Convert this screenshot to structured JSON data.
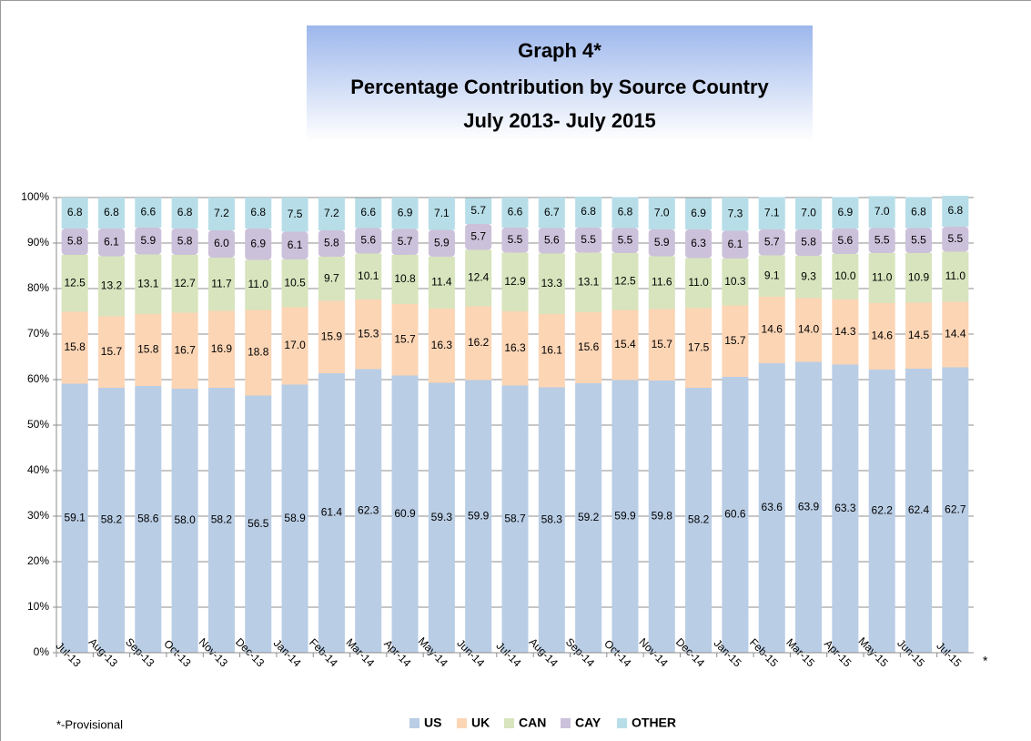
{
  "chart_data": {
    "type": "stacked_bar",
    "title": [
      "Graph 4*",
      "Percentage Contribution by Source Country",
      "July 2013- July 2015"
    ],
    "footnote": "*-Provisional",
    "axis_note": "*",
    "categories": [
      "Jul-13",
      "Aug-13",
      "Sep-13",
      "Oct-13",
      "Nov-13",
      "Dec-13",
      "Jan-14",
      "Feb-14",
      "Mar-14",
      "Apr-14",
      "May-14",
      "Jun-14",
      "Jul-14",
      "Aug-14",
      "Sep-14",
      "Oct-14",
      "Nov-14",
      "Dec-14",
      "Jan-15",
      "Feb-15",
      "Mar-15",
      "Apr-15",
      "May-15",
      "Jun-15",
      "Jul-15"
    ],
    "series": [
      {
        "name": "US",
        "color": "#b9cde5",
        "values": [
          59.1,
          58.2,
          58.6,
          58.0,
          58.2,
          56.5,
          58.9,
          61.4,
          62.3,
          60.9,
          59.3,
          59.9,
          58.7,
          58.3,
          59.2,
          59.9,
          59.8,
          58.2,
          60.6,
          63.6,
          63.9,
          63.3,
          62.2,
          62.4,
          62.7
        ],
        "value_labels": [
          "59.1",
          "58.2",
          "58.6",
          "58.0",
          "58.2",
          "56.5",
          "58.9",
          "61.4",
          "62.3",
          "60.9",
          "59.3",
          "59.9",
          "58.7",
          "58.3",
          "59.2",
          "59.9",
          "59.8",
          "58.2",
          "60.6",
          "63.6",
          "63.9",
          "63.3",
          "62.2",
          "62.4",
          "62.7"
        ]
      },
      {
        "name": "UK",
        "color": "#fcd5b5",
        "values": [
          15.8,
          15.7,
          15.8,
          16.7,
          16.9,
          18.8,
          17.0,
          15.9,
          15.3,
          15.7,
          16.3,
          16.2,
          16.3,
          16.1,
          15.6,
          15.4,
          15.7,
          17.5,
          15.7,
          14.6,
          14.0,
          14.3,
          14.6,
          14.5,
          14.4
        ],
        "value_labels": [
          "15.8",
          "15.7",
          "15.8",
          "16.7",
          "16.9",
          "18.8",
          "17.0",
          "15.9",
          "15.3",
          "15.7",
          "16.3",
          "16.2",
          "16.3",
          "16.1",
          "15.6",
          "15.4",
          "15.7",
          "17.5",
          "15.7",
          "14.6",
          "14.0",
          "14.3",
          "14.6",
          "14.5",
          "14.4"
        ]
      },
      {
        "name": "CAN",
        "color": "#d7e4bd",
        "values": [
          12.5,
          13.2,
          13.1,
          12.7,
          11.7,
          11.0,
          10.5,
          9.7,
          10.1,
          10.8,
          11.4,
          12.4,
          12.9,
          13.3,
          13.1,
          12.5,
          11.6,
          11.0,
          10.3,
          9.1,
          9.3,
          10.0,
          11.0,
          10.9,
          11.0
        ],
        "value_labels": [
          "12.5",
          "13.2",
          "13.1",
          "12.7",
          "11.7",
          "11.0",
          "10.5",
          "9.7",
          "10.1",
          "10.8",
          "11.4",
          "12.4",
          "12.9",
          "13.3",
          "13.1",
          "12.5",
          "11.6",
          "11.0",
          "10.3",
          "9.1",
          "9.3",
          "10.0",
          "11.0",
          "10.9",
          "11.0"
        ]
      },
      {
        "name": "CAY",
        "color": "#ccc1da",
        "values": [
          5.8,
          6.1,
          5.9,
          5.8,
          6.0,
          6.9,
          6.1,
          5.8,
          5.6,
          5.7,
          5.9,
          5.7,
          5.5,
          5.6,
          5.5,
          5.5,
          5.9,
          6.3,
          6.1,
          5.7,
          5.8,
          5.6,
          5.5,
          5.5,
          5.5
        ],
        "value_labels": [
          "5.8",
          "6.1",
          "5.9",
          "5.8",
          "6.0",
          "6.9",
          "6.1",
          "5.8",
          "5.6",
          "5.7",
          "5.9",
          "5.7",
          "5.5",
          "5.6",
          "5.5",
          "5.5",
          "5.9",
          "6.3",
          "6.1",
          "5.7",
          "5.8",
          "5.6",
          "5.5",
          "5.5",
          "5.5"
        ]
      },
      {
        "name": "OTHER",
        "color": "#b7dee8",
        "values": [
          6.8,
          6.8,
          6.6,
          6.8,
          7.2,
          6.8,
          7.5,
          7.2,
          6.6,
          6.9,
          7.1,
          5.7,
          6.6,
          6.7,
          6.8,
          6.8,
          7.0,
          6.9,
          7.3,
          7.1,
          7.0,
          6.9,
          7.0,
          6.8,
          6.8
        ],
        "value_labels": [
          "6.8",
          "6.8",
          "6.6",
          "6.8",
          "7.2",
          "6.8",
          "7.5",
          "7.2",
          "6.6",
          "6.9",
          "7.1",
          "5.7",
          "6.6",
          "6.7",
          "6.8",
          "6.8",
          "7.0",
          "6.9",
          "7.3",
          "7.1",
          "7.0",
          "6.9",
          "7.0",
          "6.8",
          "6.8"
        ]
      }
    ],
    "ylim": [
      0,
      100
    ],
    "yticks": [
      {
        "value": 0,
        "label": "0%"
      },
      {
        "value": 10,
        "label": "10%"
      },
      {
        "value": 20,
        "label": "20%"
      },
      {
        "value": 30,
        "label": "30%"
      },
      {
        "value": 40,
        "label": "40%"
      },
      {
        "value": 50,
        "label": "50%"
      },
      {
        "value": 60,
        "label": "60%"
      },
      {
        "value": 70,
        "label": "70%"
      },
      {
        "value": 80,
        "label": "80%"
      },
      {
        "value": 90,
        "label": "90%"
      },
      {
        "value": 100,
        "label": "100%"
      }
    ],
    "grid": true,
    "legend": "bottom"
  }
}
